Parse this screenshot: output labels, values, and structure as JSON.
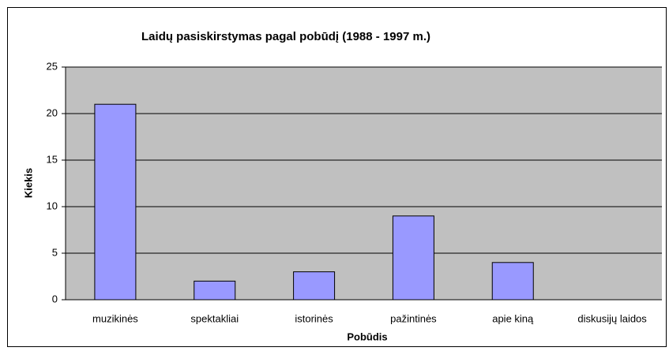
{
  "chart_data": {
    "type": "bar",
    "title": "Laidų pasiskirstymas pagal pobūdį (1988 - 1997 m.)",
    "x_label": "Pobūdis",
    "y_label": "Kiekis",
    "categories": [
      "muzikinės",
      "spektakliai",
      "istorinės",
      "pažintinės",
      "apie kiną",
      "diskusijų laidos"
    ],
    "values": [
      21,
      2,
      3,
      9,
      4,
      0
    ],
    "color": "#9999ff",
    "ylim": [
      0,
      25
    ],
    "yticks": [
      0,
      5,
      10,
      15,
      20,
      25
    ],
    "grid": true
  }
}
